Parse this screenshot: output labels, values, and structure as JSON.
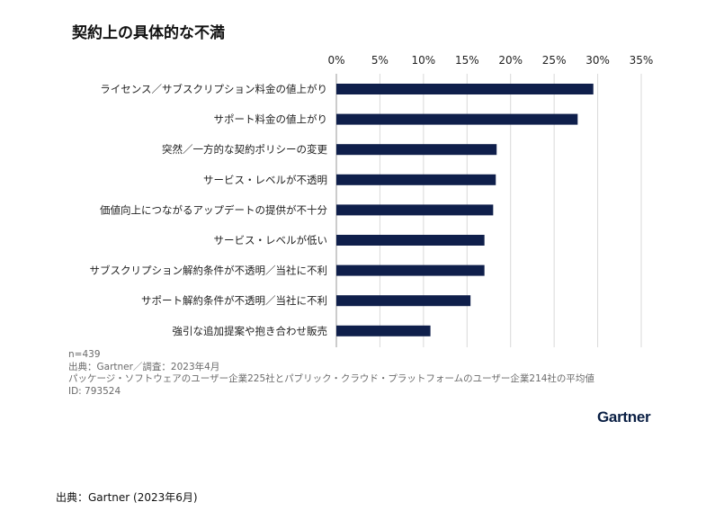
{
  "chart_data": {
    "type": "bar",
    "orientation": "horizontal",
    "title": "契約上の具体的な不満",
    "x_ticks": [
      "0%",
      "5%",
      "10%",
      "15%",
      "20%",
      "25%",
      "30%",
      "35%"
    ],
    "xlim": [
      0,
      35
    ],
    "x_axis_position": "top",
    "grid": true,
    "bar_color": "#0f1f4b",
    "categories": [
      "ライセンス／サブスクリプション料金の値上がり",
      "サポート料金の値上がり",
      "突然／一方的な契約ポリシーの変更",
      "サービス・レベルが不透明",
      "価値向上につながるアップデートの提供が不十分",
      "サービス・レベルが低い",
      "サブスクリプション解約条件が不透明／当社に不利",
      "サポート解約条件が不透明／当社に不利",
      "強引な追加提案や抱き合わせ販売"
    ],
    "values": [
      29.5,
      27.7,
      18.4,
      18.3,
      18.0,
      17.0,
      17.0,
      15.4,
      10.8
    ]
  },
  "notes": {
    "n": "n=439",
    "source": "出典：Gartner／調査：2023年4月",
    "description": "パッケージ・ソフトウェアのユーザー企業225社とパブリック・クラウド・プラットフォームのユーザー企業214社の平均値",
    "id": "ID: 793524"
  },
  "brand": "Gartner",
  "caption": "出典：Gartner (2023年6月)"
}
